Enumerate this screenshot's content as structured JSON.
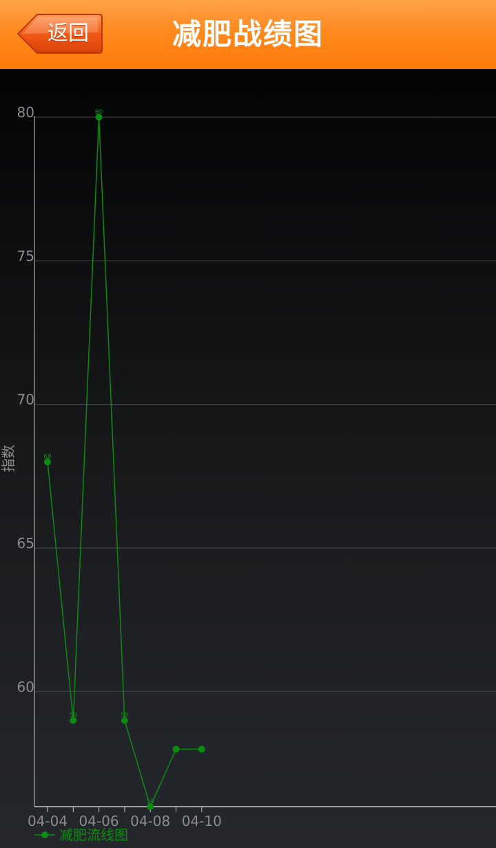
{
  "header": {
    "back_label": "返回",
    "title": "减肥战绩图",
    "accent": "#ff8a1e"
  },
  "chart_data": {
    "type": "line",
    "title": "",
    "xlabel": "",
    "ylabel": "指数",
    "x": [
      "04-04",
      "04-05",
      "04-06",
      "04-07",
      "04-08",
      "04-09",
      "04-10"
    ],
    "x_tick_labels": [
      "04-04",
      "",
      "04-06",
      "",
      "04-08",
      "",
      "04-10"
    ],
    "ylim": [
      56,
      80
    ],
    "y_ticks": [
      60,
      65,
      70,
      75,
      80
    ],
    "grid": true,
    "legend": "bottom-left",
    "series": [
      {
        "name": "减肥流线图",
        "color": "#0d8a12",
        "values": [
          68,
          59,
          80,
          59,
          56,
          58,
          58
        ],
        "labels": [
          "68",
          "59",
          "80",
          "59",
          "56",
          "",
          ""
        ]
      }
    ]
  }
}
